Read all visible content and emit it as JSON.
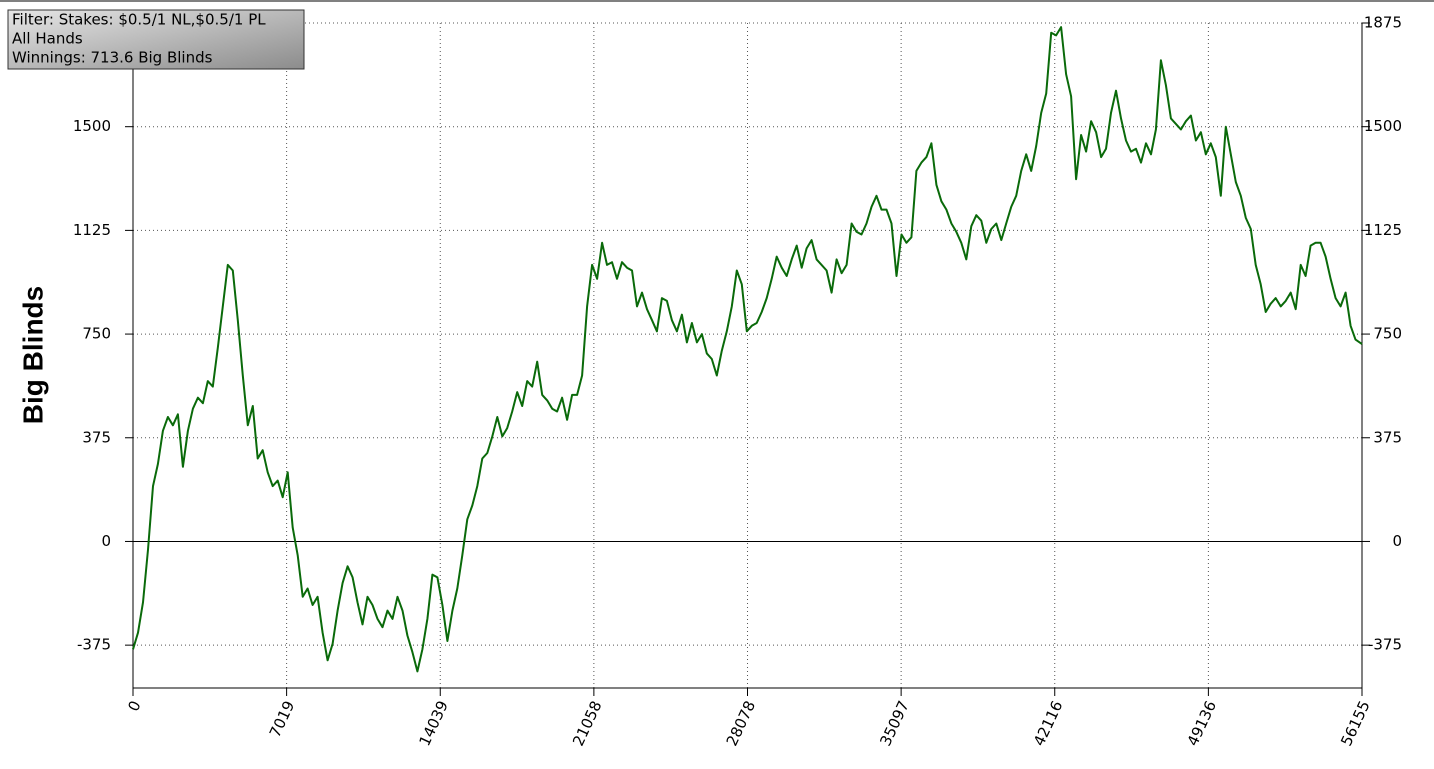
{
  "chart_data": {
    "type": "line",
    "y_label": "Big Blinds",
    "annotations": [
      "Filter: Stakes: $0.5/1 NL,$0.5/1 PL",
      "All Hands",
      "Winnings: 713.6 Big Blinds"
    ],
    "xlim": [
      0,
      56155
    ],
    "xticks": [
      0,
      7019,
      14039,
      21058,
      28078,
      35097,
      42116,
      49136,
      56155
    ],
    "ylim": [
      -530,
      1875
    ],
    "yticks": [
      -375,
      0,
      375,
      750,
      1125,
      1500,
      1875
    ],
    "grid": true,
    "color": "#0a6a0a",
    "x": [
      0,
      228,
      456,
      684,
      912,
      1140,
      1368,
      1596,
      1824,
      2052,
      2280,
      2508,
      2736,
      2964,
      3192,
      3420,
      3648,
      3876,
      4104,
      4332,
      4560,
      4788,
      5016,
      5244,
      5472,
      5700,
      5928,
      6156,
      6384,
      6612,
      6840,
      7068,
      7296,
      7524,
      7752,
      7980,
      8208,
      8436,
      8664,
      8892,
      9120,
      9348,
      9576,
      9804,
      10032,
      10260,
      10488,
      10716,
      10944,
      11172,
      11400,
      11628,
      11856,
      12084,
      12312,
      12540,
      12768,
      12996,
      13224,
      13452,
      13680,
      13908,
      14136,
      14364,
      14592,
      14820,
      15048,
      15276,
      15504,
      15732,
      15960,
      16188,
      16416,
      16644,
      16872,
      17100,
      17328,
      17556,
      17784,
      18012,
      18240,
      18468,
      18696,
      18924,
      19152,
      19380,
      19608,
      19836,
      20064,
      20292,
      20520,
      20748,
      20976,
      21204,
      21432,
      21660,
      21888,
      22116,
      22344,
      22572,
      22800,
      23028,
      23256,
      23484,
      23712,
      23940,
      24168,
      24396,
      24624,
      24852,
      25080,
      25308,
      25536,
      25764,
      25992,
      26220,
      26448,
      26676,
      26904,
      27132,
      27360,
      27588,
      27816,
      28044,
      28272,
      28500,
      28728,
      28956,
      29184,
      29412,
      29640,
      29868,
      30096,
      30324,
      30552,
      30780,
      31008,
      31236,
      31464,
      31692,
      31920,
      32148,
      32376,
      32604,
      32832,
      33060,
      33288,
      33516,
      33744,
      33972,
      34200,
      34428,
      34656,
      34884,
      35112,
      35340,
      35568,
      35796,
      36024,
      36252,
      36480,
      36708,
      36936,
      37164,
      37392,
      37620,
      37848,
      38076,
      38304,
      38532,
      38760,
      38988,
      39216,
      39444,
      39672,
      39900,
      40128,
      40356,
      40584,
      40812,
      41040,
      41268,
      41496,
      41724,
      41952,
      42180,
      42408,
      42636,
      42864,
      43092,
      43320,
      43548,
      43776,
      44004,
      44232,
      44460,
      44688,
      44916,
      45144,
      45372,
      45600,
      45828,
      46056,
      46284,
      46512,
      46740,
      46968,
      47196,
      47424,
      47652,
      47880,
      48108,
      48336,
      48564,
      48792,
      49020,
      49248,
      49476,
      49704,
      49932,
      50160,
      50388,
      50616,
      50844,
      51072,
      51300,
      51528,
      51756,
      51984,
      52212,
      52440,
      52668,
      52896,
      53124,
      53352,
      53580,
      53808,
      54036,
      54264,
      54492,
      54720,
      54948,
      55176,
      55404,
      55632,
      55860,
      56155
    ],
    "values": [
      -390,
      -330,
      -220,
      -30,
      200,
      280,
      400,
      450,
      420,
      460,
      270,
      400,
      480,
      520,
      500,
      580,
      560,
      700,
      850,
      1000,
      980,
      800,
      600,
      420,
      490,
      300,
      330,
      250,
      200,
      220,
      160,
      250,
      50,
      -50,
      -200,
      -170,
      -230,
      -200,
      -330,
      -430,
      -370,
      -250,
      -150,
      -90,
      -130,
      -220,
      -300,
      -200,
      -230,
      -280,
      -310,
      -250,
      -280,
      -200,
      -250,
      -340,
      -400,
      -470,
      -390,
      -280,
      -120,
      -130,
      -230,
      -360,
      -250,
      -170,
      -50,
      80,
      130,
      200,
      300,
      320,
      380,
      450,
      380,
      410,
      470,
      540,
      490,
      580,
      560,
      650,
      530,
      510,
      480,
      470,
      520,
      440,
      530,
      530,
      600,
      850,
      1000,
      950,
      1080,
      1000,
      1010,
      950,
      1010,
      990,
      980,
      850,
      900,
      840,
      800,
      760,
      880,
      870,
      800,
      760,
      820,
      720,
      790,
      720,
      750,
      680,
      660,
      600,
      690,
      760,
      850,
      980,
      930,
      760,
      780,
      790,
      830,
      880,
      950,
      1030,
      990,
      960,
      1020,
      1070,
      990,
      1060,
      1090,
      1020,
      1000,
      980,
      900,
      1020,
      970,
      1000,
      1150,
      1120,
      1110,
      1150,
      1210,
      1250,
      1200,
      1200,
      1150,
      960,
      1110,
      1080,
      1100,
      1340,
      1370,
      1390,
      1440,
      1290,
      1230,
      1200,
      1150,
      1120,
      1080,
      1020,
      1140,
      1180,
      1160,
      1080,
      1130,
      1150,
      1090,
      1150,
      1210,
      1250,
      1340,
      1400,
      1340,
      1430,
      1550,
      1620,
      1840,
      1830,
      1860,
      1690,
      1610,
      1310,
      1470,
      1410,
      1520,
      1480,
      1390,
      1420,
      1550,
      1630,
      1530,
      1450,
      1410,
      1420,
      1370,
      1440,
      1400,
      1490,
      1740,
      1650,
      1530,
      1510,
      1490,
      1520,
      1540,
      1450,
      1480,
      1400,
      1440,
      1390,
      1250,
      1500,
      1400,
      1300,
      1250,
      1170,
      1130,
      1000,
      930,
      830,
      860,
      880,
      850,
      870,
      900,
      840,
      1000,
      960,
      1070,
      1080,
      1080,
      1030,
      950,
      880,
      850,
      900,
      780,
      730,
      713.6
    ]
  }
}
